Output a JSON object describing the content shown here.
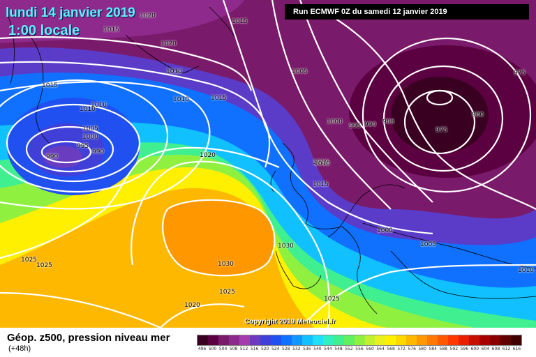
{
  "header": {
    "date_title": "lundi 14 janvier 2019",
    "time_title": "1:00 locale",
    "run_info": "Run ECMWF 0Z du samedi 12 janvier 2019"
  },
  "copyright": "Copyright 2019 Meteociel.fr",
  "footer": {
    "title": "Géop. z500, pression niveau mer",
    "subtitle": "(+48h)"
  },
  "isobar_labels": [
    "1020",
    "1015",
    "1015",
    "1020",
    "1010",
    "1015",
    "1010",
    "1010",
    "1010",
    "1005",
    "1000",
    "995",
    "990",
    "990",
    "1010",
    "1015",
    "1020",
    "1005",
    "1000",
    "995",
    "990",
    "985",
    "975",
    "980",
    "975",
    "1010",
    "1015",
    "1000",
    "1005",
    "1030",
    "1030",
    "1025",
    "1025",
    "1025",
    "1020",
    "1025",
    "1010"
  ],
  "legend": {
    "labels": [
      "496",
      "500",
      "504",
      "508",
      "512",
      "516",
      "520",
      "524",
      "528",
      "532",
      "536",
      "540",
      "544",
      "548",
      "552",
      "556",
      "560",
      "564",
      "568",
      "572",
      "576",
      "580",
      "584",
      "588",
      "592",
      "596",
      "600",
      "604",
      "608",
      "612",
      "616"
    ],
    "colors": [
      "#3a0022",
      "#5b0040",
      "#7a1a6a",
      "#8e2a8c",
      "#a43cae",
      "#6a3cc0",
      "#4040d8",
      "#2050f0",
      "#1070ff",
      "#1098ff",
      "#10c0ff",
      "#20e0f8",
      "#30f0c0",
      "#40f090",
      "#60f060",
      "#90f040",
      "#c0f030",
      "#e8f020",
      "#fff000",
      "#ffd800",
      "#ffb800",
      "#ff9800",
      "#ff7800",
      "#ff5800",
      "#ff3800",
      "#e82000",
      "#c81000",
      "#a80000",
      "#880000",
      "#600000",
      "#400000"
    ],
    "accent": "#000000"
  }
}
